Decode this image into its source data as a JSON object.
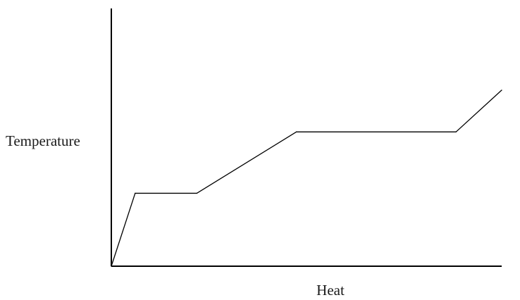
{
  "chart_data": {
    "type": "line",
    "title": "",
    "xlabel": "Heat",
    "ylabel": "Temperature",
    "xlim": [
      0,
      100
    ],
    "ylim": [
      0,
      100
    ],
    "grid": false,
    "legend": "none",
    "show_ticks": false,
    "line_color": "#000000",
    "series": [
      {
        "values_x": [
          0,
          6.1,
          21.9,
          47.4,
          88.3,
          100
        ],
        "values_y": [
          0,
          28.3,
          28.3,
          52.1,
          52.1,
          68.3
        ]
      }
    ]
  }
}
